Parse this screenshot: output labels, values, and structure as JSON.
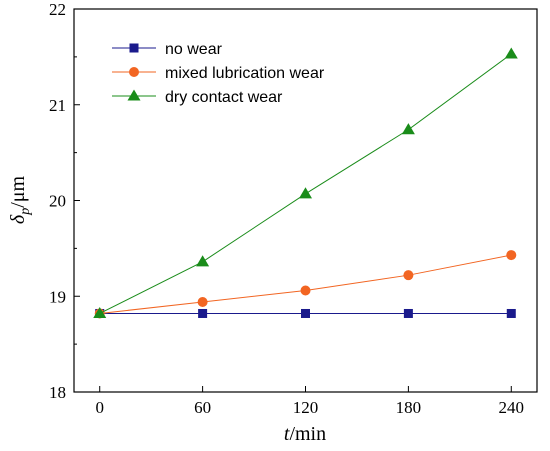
{
  "chart_data": {
    "type": "line",
    "x": [
      0,
      60,
      120,
      180,
      240
    ],
    "xticks": [
      "0",
      "60",
      "120",
      "180",
      "240"
    ],
    "yticks": [
      "18",
      "19",
      "20",
      "21",
      "22"
    ],
    "xlim": [
      -15,
      255
    ],
    "ylim": [
      18,
      22
    ],
    "xlabel": {
      "var": "t",
      "unit": "/min"
    },
    "ylabel": {
      "var": "δ",
      "sub": "p",
      "unit": "/μm"
    },
    "grid": false,
    "legend_position": "top-left",
    "series": [
      {
        "name": "no wear",
        "color": "#1a1a8c",
        "marker": "square",
        "values": [
          18.82,
          18.82,
          18.82,
          18.82,
          18.82
        ]
      },
      {
        "name": "mixed lubrication wear",
        "color": "#f26522",
        "marker": "circle",
        "values": [
          18.82,
          18.94,
          19.06,
          19.22,
          19.43
        ]
      },
      {
        "name": "dry contact wear",
        "color": "#1a8c1a",
        "marker": "triangle",
        "values": [
          18.82,
          19.36,
          20.07,
          20.74,
          21.53
        ]
      }
    ]
  }
}
